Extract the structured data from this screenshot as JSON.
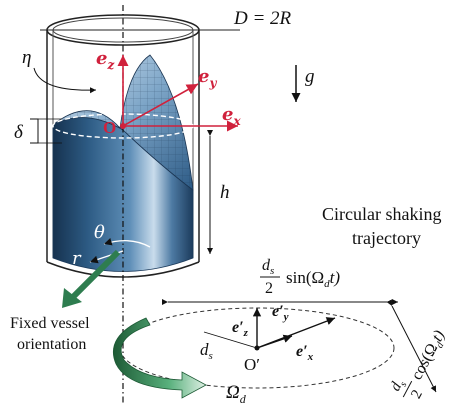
{
  "labels": {
    "diameter": "D = 2R",
    "eta": "η",
    "delta": "δ",
    "g": "g",
    "h": "h",
    "theta": "θ",
    "r": "r",
    "origin": "O",
    "origin_prime": "O′",
    "fixed_vessel_line1": "Fixed vessel",
    "fixed_vessel_line2": "orientation",
    "trajectory_line1": "Circular shaking",
    "trajectory_line2": "trajectory",
    "ds": "d",
    "ds_sub": "s",
    "omega_d": "Ω",
    "omega_d_sub": "d",
    "sin_term": "sin(Ω",
    "sin_term_end": "t)",
    "cos_term": "cos(Ω",
    "cos_term_end": "t)",
    "fraction_num": "d",
    "fraction_den": "2"
  },
  "axes": {
    "ez": "e",
    "ez_sub": "z",
    "ey": "e",
    "ey_sub": "y",
    "ex": "e",
    "ex_sub": "x",
    "ez_prime": "e′",
    "ez_prime_sub": "z",
    "ey_prime": "e′",
    "ey_prime_sub": "y",
    "ex_prime": "e′",
    "ex_prime_sub": "x"
  },
  "colors": {
    "accent_red": "#d0213c",
    "liquid_blue": "#3a6d96",
    "arrow_green": "#2e7d4f"
  }
}
